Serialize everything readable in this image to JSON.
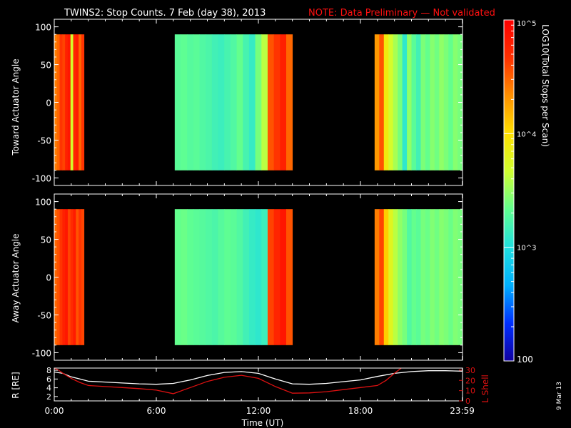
{
  "title": {
    "main": "TWINS2: Stop Counts.  7 Feb (day  38), 2013",
    "note": "NOTE: Data Preliminary — Not validated"
  },
  "colors": {
    "background": "#000000",
    "axes": "#ffffff",
    "note": "#ff1010",
    "r_line": "#ffffff",
    "lshell_line": "#dd1111"
  },
  "date_stamp": "9 Mar 13",
  "colorbar": {
    "label": "LOG10(Total Stops per Scan)",
    "scale": "log",
    "range": [
      100,
      100000
    ],
    "tick_labels": [
      "100",
      "10^3",
      "10^4",
      "10^5"
    ],
    "colormap": [
      "#1000a0",
      "#0030ff",
      "#00b0ff",
      "#20e0e0",
      "#60ff90",
      "#d0ff30",
      "#ffe000",
      "#ff9000",
      "#ff3000",
      "#ff0000"
    ]
  },
  "chart_data": [
    {
      "type": "heatmap",
      "name": "Toward Actuator Angle spectrogram",
      "ylabel": "Toward Actuator Angle",
      "xlim": [
        "0:00",
        "23:59"
      ],
      "ylim": [
        -110,
        110
      ],
      "yticks": [
        -100,
        -50,
        0,
        50,
        100
      ],
      "y_data_range": [
        -90,
        90
      ],
      "data_intervals": [
        {
          "start": "0:00",
          "end": "1:45",
          "counts_profile": [
            25000,
            30000,
            45000,
            40000,
            60000,
            70000,
            5000,
            55000,
            65000,
            30000,
            45000
          ]
        },
        {
          "start": "7:05",
          "end": "14:00",
          "counts_profile": [
            2000,
            2100,
            1900,
            2000,
            1800,
            1700,
            1500,
            1400,
            1600,
            1800,
            2200,
            1600,
            1300,
            2500,
            4000,
            35000,
            45000,
            60000,
            30000
          ]
        },
        {
          "start": "18:50",
          "end": "23:59",
          "counts_profile": [
            20000,
            35000,
            8000,
            5000,
            3500,
            2500,
            1200,
            3000,
            2000,
            1500,
            2600,
            2200,
            2800,
            2400,
            3000,
            2600,
            2200,
            2800,
            2500
          ]
        }
      ]
    },
    {
      "type": "heatmap",
      "name": "Away Actuator Angle spectrogram",
      "ylabel": "Away Actuator Angle",
      "xlim": [
        "0:00",
        "23:59"
      ],
      "ylim": [
        -110,
        110
      ],
      "yticks": [
        -100,
        -50,
        0,
        50,
        100
      ],
      "y_data_range": [
        -90,
        90
      ],
      "data_intervals": [
        {
          "start": "0:00",
          "end": "1:45",
          "counts_profile": [
            30000,
            35000,
            45000,
            60000,
            70000,
            40000,
            50000,
            65000,
            35000,
            45000,
            40000
          ]
        },
        {
          "start": "7:05",
          "end": "14:00",
          "counts_profile": [
            2200,
            2300,
            2100,
            2000,
            1900,
            1800,
            1700,
            1900,
            2100,
            2000,
            1800,
            1500,
            1300,
            1200,
            1400,
            40000,
            55000,
            70000,
            35000
          ]
        },
        {
          "start": "18:50",
          "end": "23:59",
          "counts_profile": [
            25000,
            40000,
            12000,
            6000,
            4000,
            3000,
            2500,
            1800,
            2200,
            2000,
            2500,
            2300,
            2700,
            2400,
            2800,
            2600,
            2300,
            2700,
            2500
          ]
        }
      ]
    },
    {
      "type": "line",
      "name": "Orbit ephemeris",
      "xlabel": "Time (UT)",
      "xticks": [
        "0:00",
        "6:00",
        "12:00",
        "18:00",
        "23:59"
      ],
      "ylabel_left": "R [RE]",
      "ylim_left": [
        1,
        8.5
      ],
      "yticks_left": [
        2,
        4,
        6,
        8
      ],
      "ylabel_right": "L Shell",
      "ylim_right": [
        0,
        32
      ],
      "yticks_right": [
        0,
        10,
        20,
        30
      ],
      "series": [
        {
          "name": "R [RE]",
          "axis": "left",
          "x": [
            0,
            0.5,
            1,
            1.5,
            2,
            3,
            4,
            5,
            6,
            7,
            8,
            9,
            10,
            11,
            12,
            13,
            14,
            15,
            16,
            17,
            18,
            19,
            20,
            21,
            22,
            23,
            23.98
          ],
          "y": [
            7.6,
            7.3,
            6.5,
            6.0,
            5.5,
            5.3,
            5.1,
            4.9,
            4.8,
            5.0,
            5.8,
            6.8,
            7.5,
            7.7,
            7.3,
            6.0,
            4.9,
            4.8,
            5.0,
            5.4,
            5.8,
            6.6,
            7.3,
            7.7,
            7.9,
            7.9,
            7.8
          ]
        },
        {
          "name": "L Shell",
          "axis": "right",
          "x": [
            0,
            0.25,
            0.5,
            1,
            1.5,
            2,
            3,
            4,
            5,
            6,
            7,
            8,
            9,
            10,
            11,
            12,
            13,
            14,
            15,
            16,
            17,
            18,
            19,
            19.5,
            20,
            20.4
          ],
          "y": [
            32,
            30,
            27,
            22,
            18,
            15,
            14,
            13,
            12,
            10.5,
            7,
            13,
            19,
            23,
            25,
            22,
            14,
            7.5,
            7.8,
            9,
            11,
            13,
            15,
            20,
            27,
            32
          ]
        }
      ]
    }
  ]
}
